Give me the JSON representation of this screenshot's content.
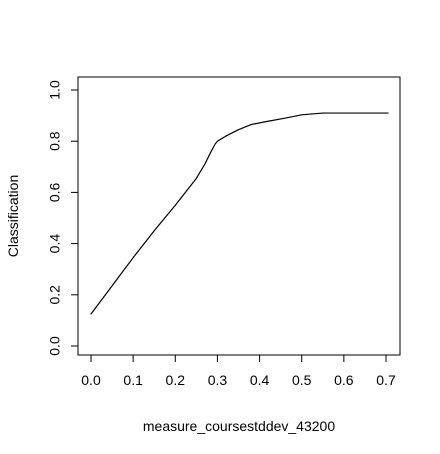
{
  "chart_data": {
    "type": "line",
    "title": "",
    "xlabel": "measure_coursestddev_43200",
    "ylabel": "Classification",
    "xlim": [
      0,
      0.7
    ],
    "ylim": [
      0,
      1
    ],
    "xticks": [
      "0.0",
      "0.1",
      "0.2",
      "0.3",
      "0.4",
      "0.5",
      "0.6",
      "0.7"
    ],
    "yticks": [
      "0.0",
      "0.2",
      "0.4",
      "0.6",
      "0.8",
      "1.0"
    ],
    "grid": false,
    "legend": "none",
    "line_color": "#000000",
    "series": [
      {
        "x": [
          0.0,
          0.05,
          0.1,
          0.15,
          0.2,
          0.25,
          0.27,
          0.285,
          0.295,
          0.3,
          0.32,
          0.35,
          0.38,
          0.42,
          0.46,
          0.5,
          0.55,
          0.6,
          0.65,
          0.705
        ],
        "y": [
          0.125,
          0.235,
          0.345,
          0.45,
          0.55,
          0.655,
          0.71,
          0.76,
          0.79,
          0.8,
          0.82,
          0.845,
          0.865,
          0.878,
          0.89,
          0.903,
          0.91,
          0.91,
          0.91,
          0.91
        ]
      }
    ]
  }
}
